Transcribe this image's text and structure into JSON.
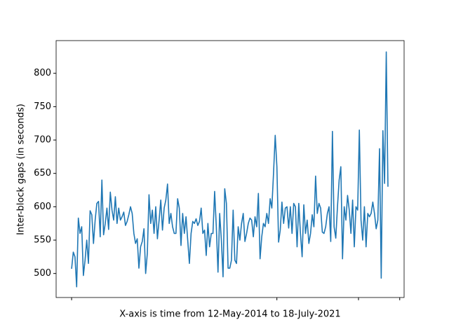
{
  "chart_data": {
    "type": "line",
    "xlabel": "X-axis is time from 12-May-2014 to 18-July-2021",
    "ylabel": "Inter-block gaps (in seconds)",
    "color": "#1f77b4",
    "xlim": [
      -9.2,
      197.6
    ],
    "xticks": [
      0,
      122,
      170.5,
      195
    ],
    "ylim": [
      464,
      849
    ],
    "yticks": [
      500,
      550,
      600,
      650,
      700,
      750,
      800
    ],
    "values": [
      507,
      532,
      525,
      480,
      583,
      560,
      570,
      497,
      520,
      550,
      515,
      594,
      588,
      545,
      580,
      605,
      608,
      555,
      640,
      558,
      575,
      598,
      566,
      622,
      595,
      580,
      615,
      575,
      598,
      580,
      585,
      592,
      572,
      578,
      588,
      600,
      590,
      560,
      545,
      552,
      508,
      540,
      548,
      567,
      500,
      530,
      618,
      575,
      595,
      560,
      600,
      552,
      580,
      610,
      565,
      598,
      610,
      634,
      575,
      590,
      570,
      560,
      560,
      612,
      598,
      542,
      590,
      560,
      585,
      550,
      515,
      560,
      578,
      575,
      582,
      572,
      578,
      598,
      560,
      565,
      527,
      575,
      540,
      560,
      560,
      623,
      570,
      502,
      590,
      550,
      495,
      627,
      605,
      508,
      508,
      520,
      595,
      520,
      515,
      570,
      550,
      575,
      590,
      548,
      560,
      575,
      583,
      580,
      555,
      585,
      570,
      620,
      522,
      555,
      575,
      570,
      590,
      575,
      612,
      598,
      650,
      707,
      660,
      547,
      565,
      607,
      575,
      598,
      600,
      568,
      600,
      560,
      605,
      600,
      540,
      605,
      560,
      525,
      603,
      560,
      580,
      545,
      560,
      588,
      570,
      646,
      590,
      605,
      598,
      562,
      560,
      570,
      590,
      600,
      548,
      713,
      570,
      553,
      600,
      640,
      660,
      522,
      600,
      580,
      617,
      595,
      560,
      610,
      540,
      600,
      595,
      715,
      580,
      550,
      600,
      540,
      590,
      585,
      590,
      607,
      590,
      567,
      580,
      687,
      493,
      714,
      635,
      832,
      630
    ]
  }
}
